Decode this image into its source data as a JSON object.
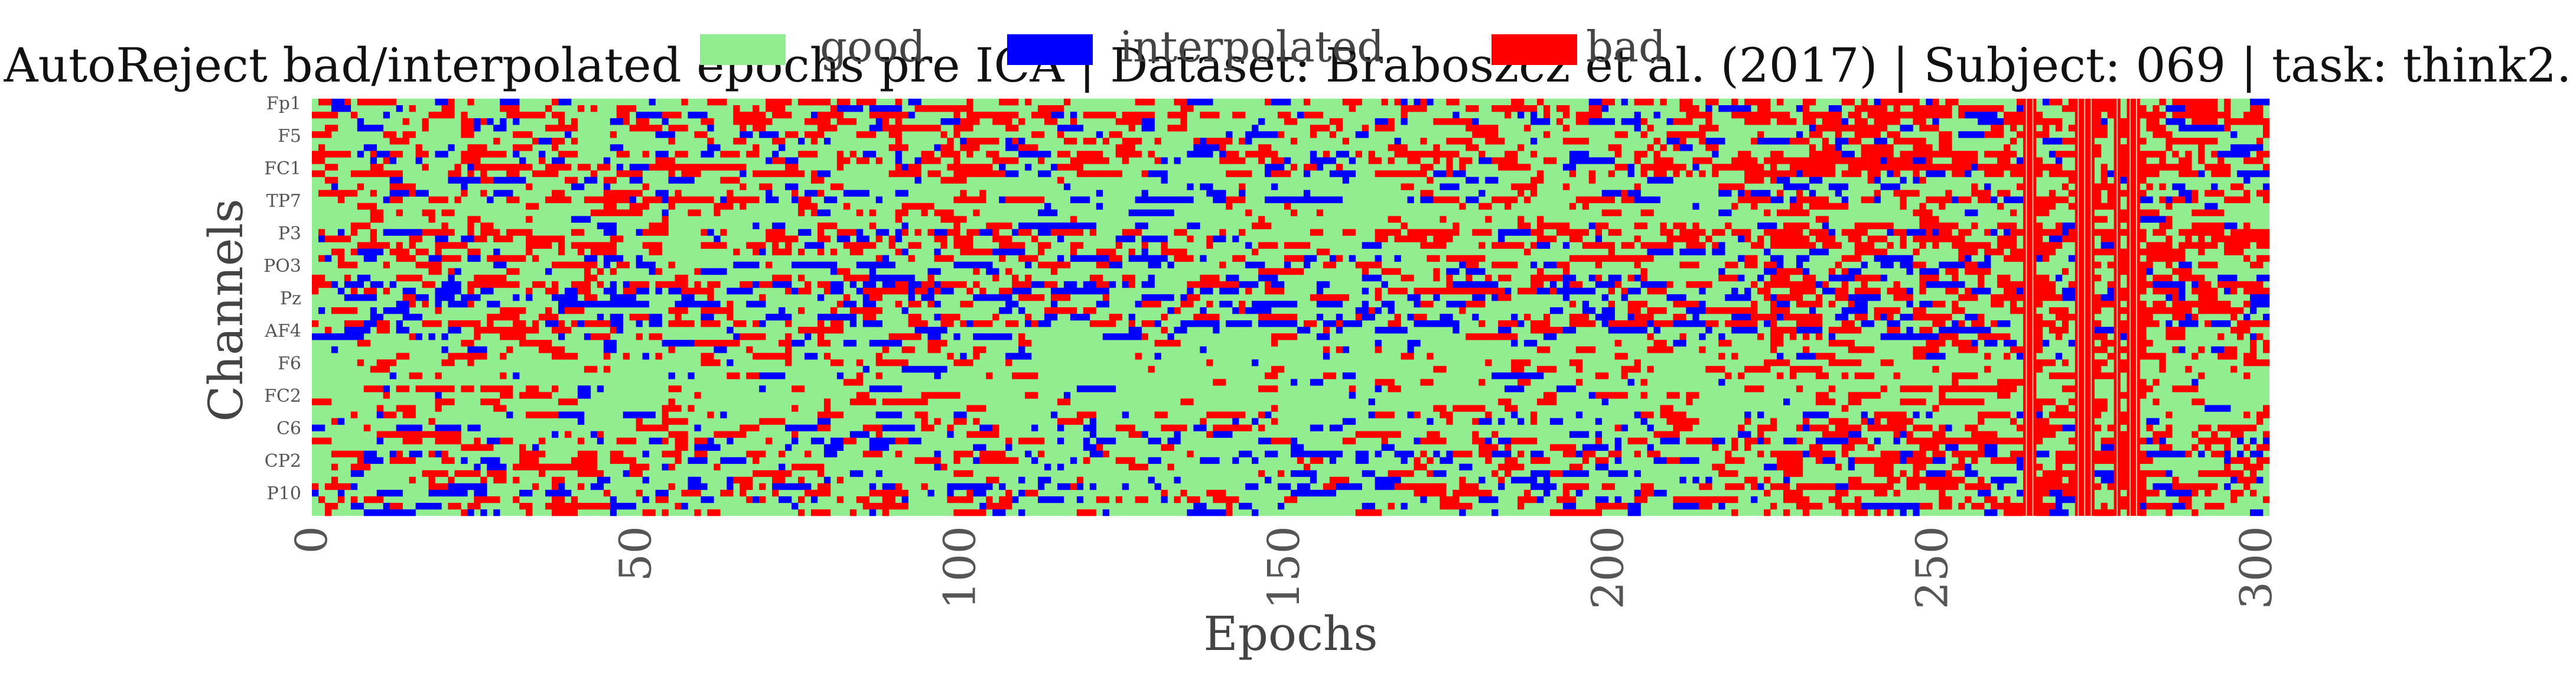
{
  "chart_data": {
    "type": "heatmap",
    "title": "AutoReject bad/interpolated epochs pre ICA | Dataset: Braboszcz et al. (2017) | Subject: 069 | task: think2.",
    "xlabel": "Epochs",
    "ylabel": "Channels",
    "x_range": [
      0,
      302
    ],
    "x_ticks": [
      0,
      50,
      100,
      150,
      200,
      250,
      300
    ],
    "y_tick_labels": [
      "Fp1",
      "F5",
      "FC1",
      "TP7",
      "P3",
      "PO3",
      "Pz",
      "AF4",
      "F6",
      "FC2",
      "C6",
      "CP2",
      "P10"
    ],
    "n_channels": 64,
    "n_epochs": 302,
    "states": [
      "good",
      "interpolated",
      "bad"
    ],
    "legend": {
      "placement": "top-center",
      "entries": [
        {
          "label": "good",
          "color": "#90EE90"
        },
        {
          "label": "interpolated",
          "color": "#0000FF"
        },
        {
          "label": "bad",
          "color": "#FF0000"
        }
      ]
    },
    "grid": false,
    "bad_epoch_columns": [
      264,
      265,
      272,
      273,
      274,
      278,
      280,
      281
    ],
    "row_profiles": [
      {
        "channel_index": 0,
        "bad_rate": 0.25,
        "interp_rate": 0.08
      },
      {
        "channel_index": 4,
        "bad_rate": 0.18,
        "interp_rate": 0.06
      },
      {
        "channel_index": 8,
        "bad_rate": 0.3,
        "interp_rate": 0.1
      },
      {
        "channel_index": 12,
        "bad_rate": 0.12,
        "interp_rate": 0.12
      },
      {
        "channel_index": 16,
        "bad_rate": 0.1,
        "interp_rate": 0.03
      },
      {
        "channel_index": 20,
        "bad_rate": 0.28,
        "interp_rate": 0.08
      },
      {
        "channel_index": 24,
        "bad_rate": 0.12,
        "interp_rate": 0.1
      },
      {
        "channel_index": 28,
        "bad_rate": 0.22,
        "interp_rate": 0.22
      },
      {
        "channel_index": 32,
        "bad_rate": 0.24,
        "interp_rate": 0.18
      },
      {
        "channel_index": 36,
        "bad_rate": 0.14,
        "interp_rate": 0.08
      },
      {
        "channel_index": 40,
        "bad_rate": 0.06,
        "interp_rate": 0.02
      },
      {
        "channel_index": 44,
        "bad_rate": 0.08,
        "interp_rate": 0.03
      },
      {
        "channel_index": 48,
        "bad_rate": 0.15,
        "interp_rate": 0.1
      }
    ]
  }
}
